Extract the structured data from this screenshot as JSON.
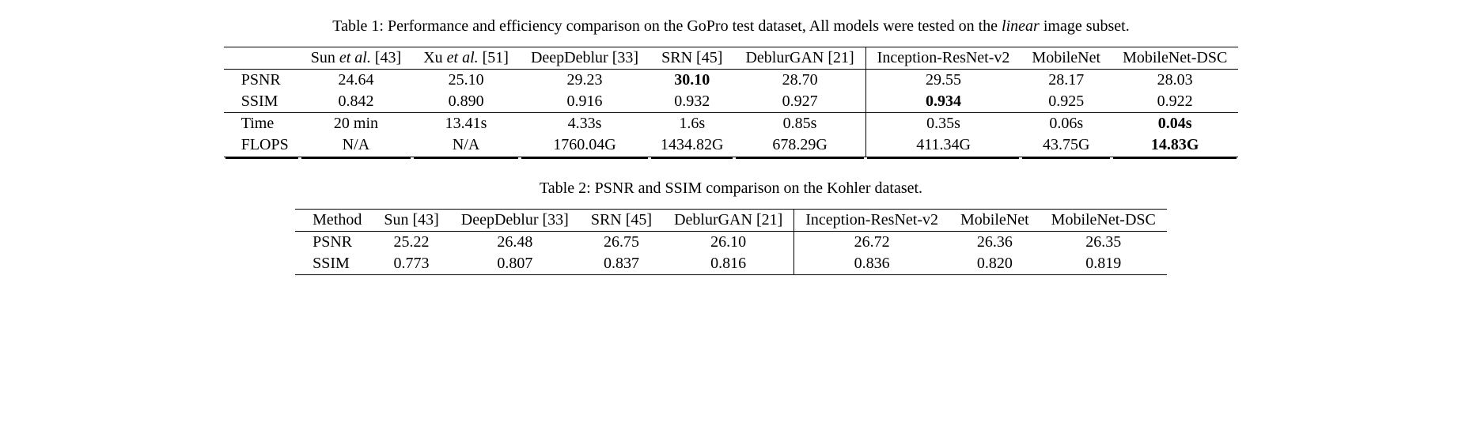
{
  "table1": {
    "caption_parts": {
      "prefix": "Table 1: Performance and efficiency comparison on the GoPro test dataset, All models were tested on the ",
      "italic": "linear",
      "suffix": " image subset."
    },
    "columns": [
      {
        "label": "",
        "vsep": false
      },
      {
        "label_parts": [
          "Sun ",
          "et al.",
          " [43]"
        ],
        "vsep": false
      },
      {
        "label_parts": [
          "Xu ",
          "et al.",
          " [51]"
        ],
        "vsep": false
      },
      {
        "label": "DeepDeblur [33]",
        "vsep": false
      },
      {
        "label": "SRN [45]",
        "vsep": false
      },
      {
        "label": "DeblurGAN [21]",
        "vsep": false
      },
      {
        "label": "Inception-ResNet-v2",
        "vsep": true
      },
      {
        "label": "MobileNet",
        "vsep": false
      },
      {
        "label": "MobileNet-DSC",
        "vsep": false
      }
    ],
    "groups": [
      {
        "rows": [
          {
            "hdr": "PSNR",
            "cells": [
              {
                "v": "24.64"
              },
              {
                "v": "25.10"
              },
              {
                "v": "29.23"
              },
              {
                "v": "30.10",
                "bold": true
              },
              {
                "v": "28.70"
              },
              {
                "v": "29.55"
              },
              {
                "v": "28.17"
              },
              {
                "v": "28.03"
              }
            ]
          },
          {
            "hdr": "SSIM",
            "cells": [
              {
                "v": "0.842"
              },
              {
                "v": "0.890"
              },
              {
                "v": "0.916"
              },
              {
                "v": "0.932"
              },
              {
                "v": "0.927"
              },
              {
                "v": "0.934",
                "bold": true
              },
              {
                "v": "0.925"
              },
              {
                "v": "0.922"
              }
            ]
          }
        ]
      },
      {
        "rows": [
          {
            "hdr": "Time",
            "cells": [
              {
                "v": "20 min"
              },
              {
                "v": "13.41s"
              },
              {
                "v": "4.33s"
              },
              {
                "v": "1.6s"
              },
              {
                "v": "0.85s"
              },
              {
                "v": "0.35s"
              },
              {
                "v": "0.06s"
              },
              {
                "v": "0.04s",
                "bold": true
              }
            ]
          },
          {
            "hdr": "FLOPS",
            "cells": [
              {
                "v": "N/A"
              },
              {
                "v": "N/A"
              },
              {
                "v": "1760.04G"
              },
              {
                "v": "1434.82G"
              },
              {
                "v": "678.29G"
              },
              {
                "v": "411.34G"
              },
              {
                "v": "43.75G"
              },
              {
                "v": "14.83G",
                "bold": true
              }
            ]
          }
        ]
      }
    ]
  },
  "table2": {
    "caption": "Table 2: PSNR and SSIM comparison on the Kohler dataset.",
    "columns": [
      {
        "label": "Method",
        "vsep": false,
        "is_rowhdr": true
      },
      {
        "label": "Sun [43]",
        "vsep": false
      },
      {
        "label": "DeepDeblur [33]",
        "vsep": false
      },
      {
        "label": "SRN [45]",
        "vsep": false
      },
      {
        "label": "DeblurGAN [21]",
        "vsep": false
      },
      {
        "label": "Inception-ResNet-v2",
        "vsep": true
      },
      {
        "label": "MobileNet",
        "vsep": false
      },
      {
        "label": "MobileNet-DSC",
        "vsep": false
      }
    ],
    "rows": [
      {
        "hdr": "PSNR",
        "cells": [
          {
            "v": "25.22"
          },
          {
            "v": "26.48"
          },
          {
            "v": "26.75"
          },
          {
            "v": "26.10"
          },
          {
            "v": "26.72"
          },
          {
            "v": "26.36"
          },
          {
            "v": "26.35"
          }
        ]
      },
      {
        "hdr": "SSIM",
        "cells": [
          {
            "v": "0.773"
          },
          {
            "v": "0.807"
          },
          {
            "v": "0.837"
          },
          {
            "v": "0.816"
          },
          {
            "v": "0.836"
          },
          {
            "v": "0.820"
          },
          {
            "v": "0.819"
          }
        ]
      }
    ]
  }
}
